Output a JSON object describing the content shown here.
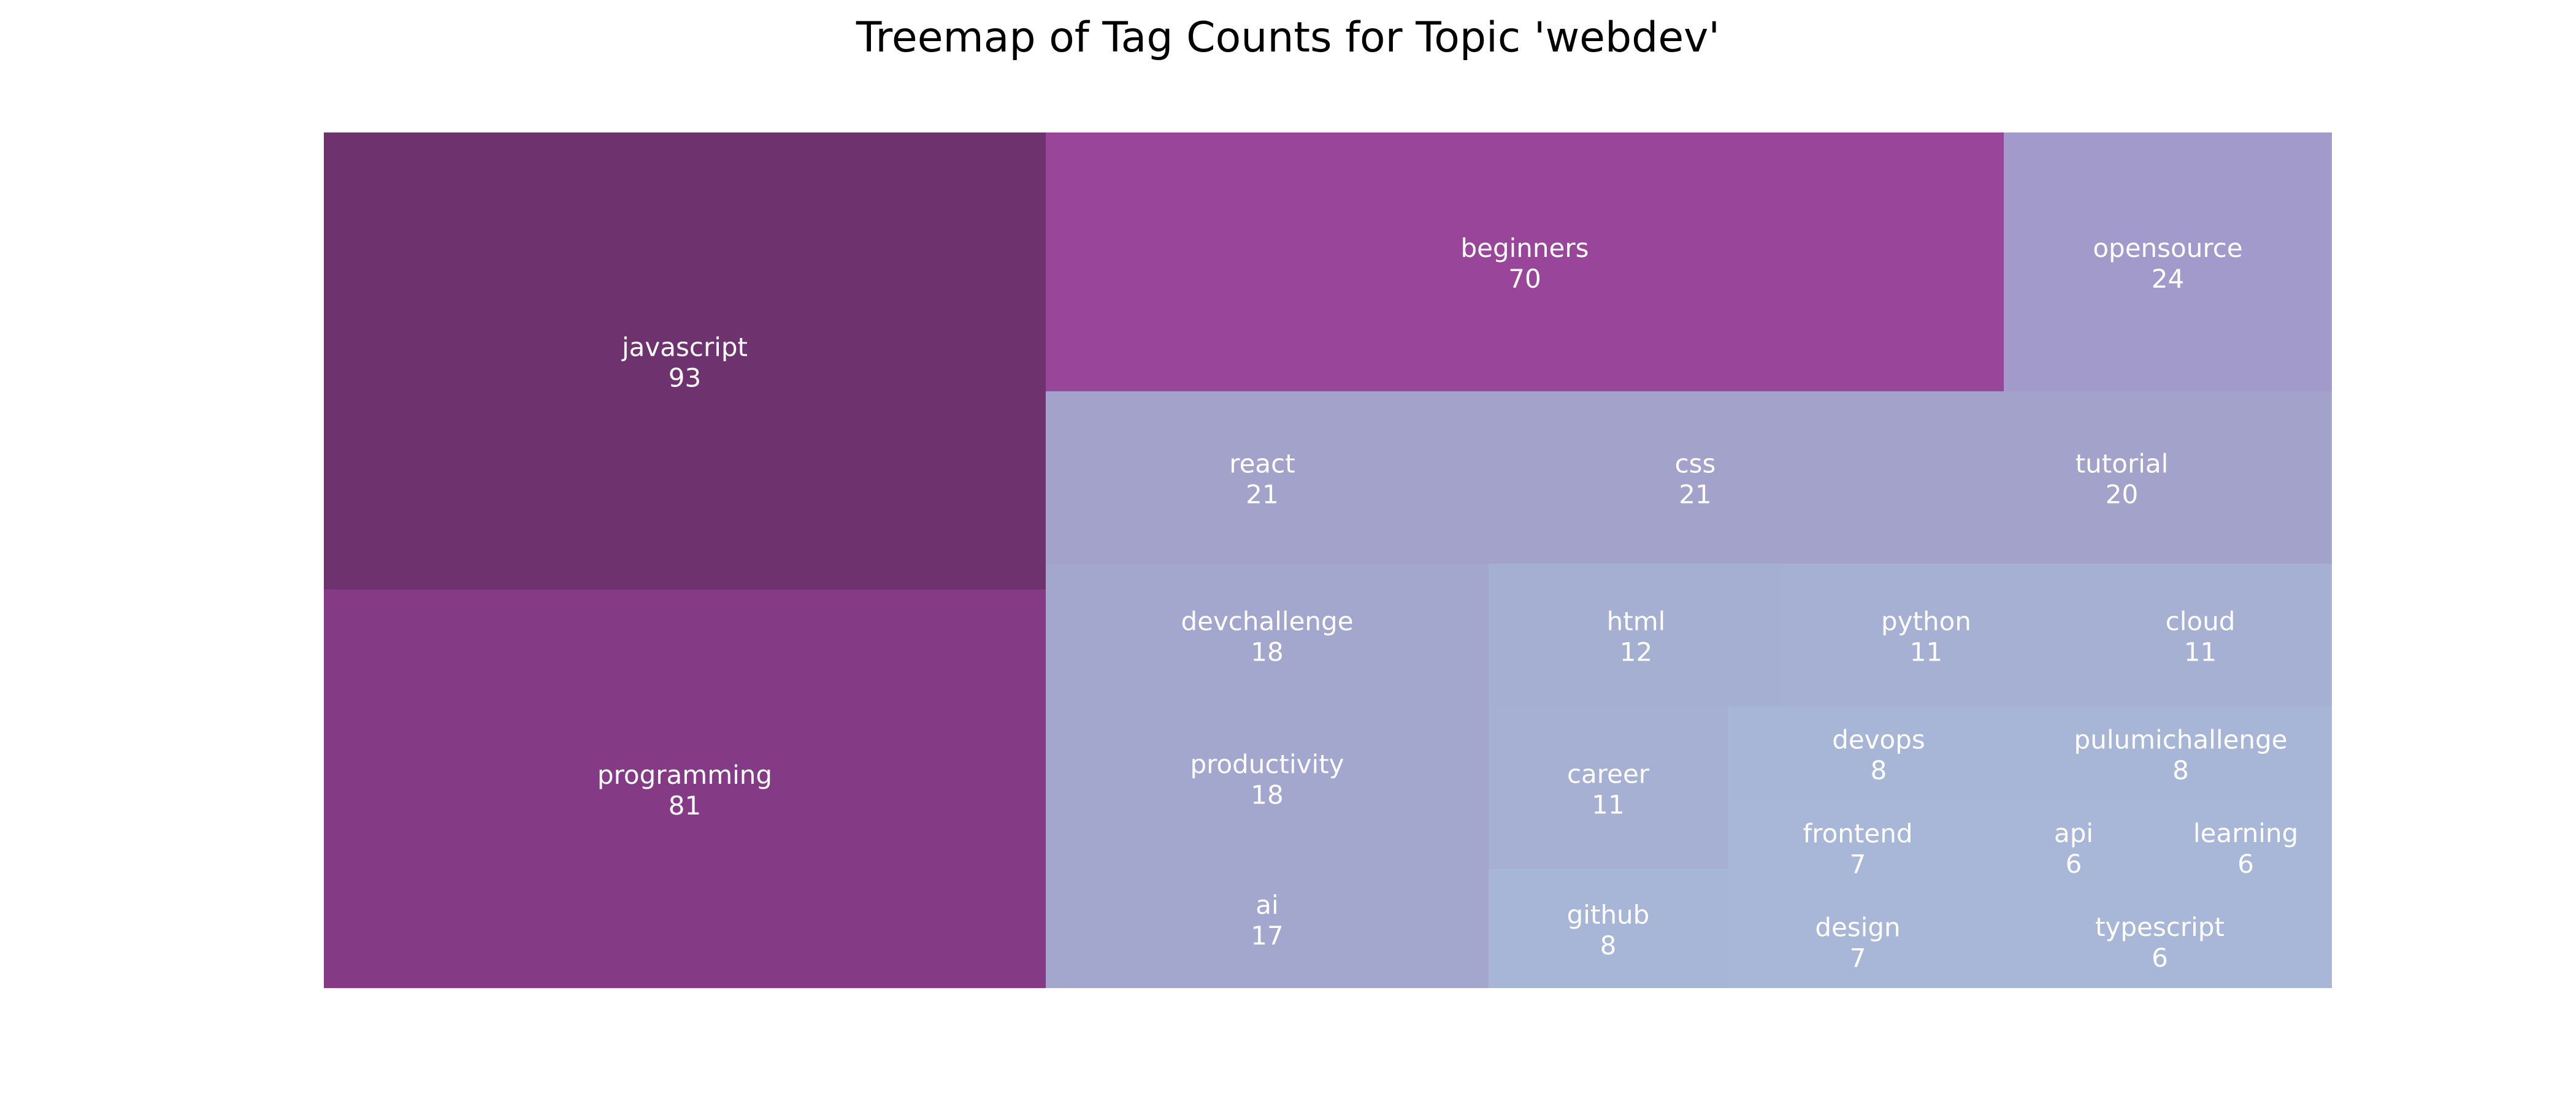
{
  "chart_data": {
    "type": "treemap",
    "title": "Treemap of Tag Counts for Topic 'webdev'",
    "items": [
      {
        "label": "javascript",
        "value": 93,
        "color": "#6e326e"
      },
      {
        "label": "programming",
        "value": 81,
        "color": "#843a84"
      },
      {
        "label": "beginners",
        "value": 70,
        "color": "#98459a"
      },
      {
        "label": "opensource",
        "value": 24,
        "color": "#a29aca"
      },
      {
        "label": "react",
        "value": 21,
        "color": "#a3a2cb"
      },
      {
        "label": "css",
        "value": 21,
        "color": "#a3a2cb"
      },
      {
        "label": "tutorial",
        "value": 20,
        "color": "#a3a2cb"
      },
      {
        "label": "devchallenge",
        "value": 18,
        "color": "#a3a6cd"
      },
      {
        "label": "productivity",
        "value": 18,
        "color": "#a3a6cd"
      },
      {
        "label": "ai",
        "value": 17,
        "color": "#a3a6cd"
      },
      {
        "label": "html",
        "value": 12,
        "color": "#a5afd2"
      },
      {
        "label": "python",
        "value": 11,
        "color": "#a5b0d3"
      },
      {
        "label": "cloud",
        "value": 11,
        "color": "#a5b0d3"
      },
      {
        "label": "career",
        "value": 11,
        "color": "#a5b0d3"
      },
      {
        "label": "devops",
        "value": 8,
        "color": "#a7b5d6"
      },
      {
        "label": "pulumichallenge",
        "value": 8,
        "color": "#a7b5d6"
      },
      {
        "label": "github",
        "value": 8,
        "color": "#a7b5d6"
      },
      {
        "label": "frontend",
        "value": 7,
        "color": "#a8b6d7"
      },
      {
        "label": "design",
        "value": 7,
        "color": "#a8b6d7"
      },
      {
        "label": "api",
        "value": 6,
        "color": "#a8b7d8"
      },
      {
        "label": "learning",
        "value": 6,
        "color": "#a8b7d8"
      },
      {
        "label": "typescript",
        "value": 6,
        "color": "#a8b7d8"
      }
    ]
  }
}
